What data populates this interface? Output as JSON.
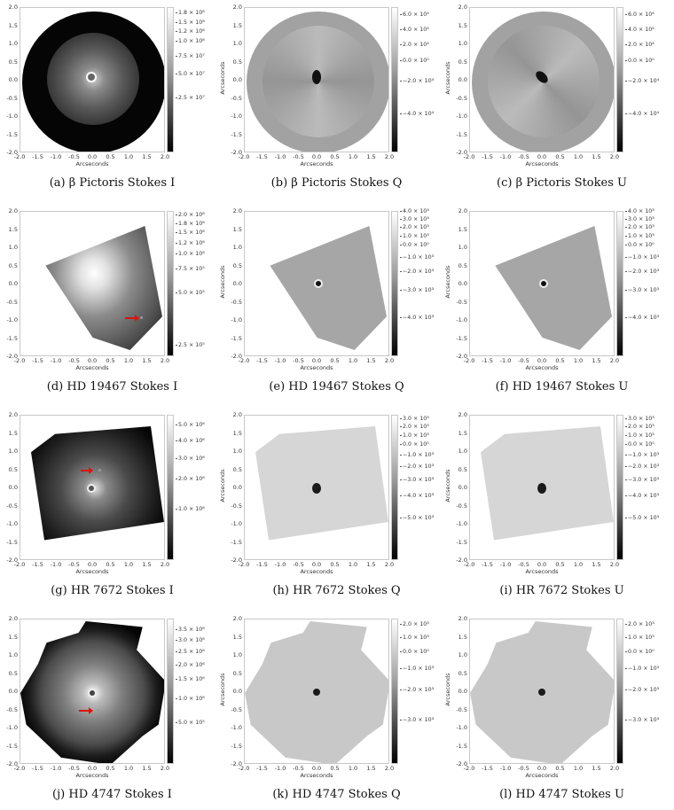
{
  "figure": {
    "axis_label": "Arcseconds",
    "x_ticks": [
      "-2.0",
      "-1.5",
      "-1.0",
      "-0.5",
      "0.0",
      "0.5",
      "1.0",
      "1.5",
      "2.0"
    ],
    "y_ticks": [
      "2.0",
      "1.5",
      "1.0",
      "0.5",
      "0.0",
      "-0.5",
      "-1.0",
      "-1.5",
      "-2.0"
    ],
    "panels": [
      {
        "id": "a",
        "caption": "(a) β Pictoris Stokes I",
        "target": "β Pictoris",
        "stokes": "I",
        "colorbar": [
          "1.8 × 10⁸",
          "1.5 × 10⁸",
          "1.2 × 10⁸",
          "1.0 × 10⁸",
          "7.5 × 10⁷",
          "5.0 × 10⁷",
          "2.5 × 10⁷"
        ],
        "colorbar_pos": [
          6,
          17,
          27,
          38,
          55,
          75,
          102
        ]
      },
      {
        "id": "b",
        "caption": "(b) β Pictoris Stokes Q",
        "target": "β Pictoris",
        "stokes": "Q",
        "colorbar": [
          "6.0 × 10⁴",
          "4.0 × 10⁴",
          "2.0 × 10⁴",
          "0.0 × 10⁰",
          "−2.0 × 10⁴",
          "−4.0 × 10⁴"
        ],
        "colorbar_pos": [
          8,
          25,
          42,
          60,
          83,
          120
        ]
      },
      {
        "id": "c",
        "caption": "(c) β Pictoris Stokes U",
        "target": "β Pictoris",
        "stokes": "U",
        "colorbar": [
          "6.0 × 10⁴",
          "4.0 × 10⁴",
          "2.0 × 10⁴",
          "0.0 × 10⁰",
          "−2.0 × 10⁴",
          "−4.0 × 10⁴"
        ],
        "colorbar_pos": [
          8,
          25,
          42,
          60,
          83,
          120
        ]
      },
      {
        "id": "d",
        "caption": "(d) HD 19467 Stokes I",
        "target": "HD 19467",
        "stokes": "I",
        "colorbar": [
          "2.0 × 10⁶",
          "1.8 × 10⁶",
          "1.5 × 10⁶",
          "1.2 × 10⁶",
          "1.0 × 10⁶",
          "7.5 × 10⁵",
          "5.0 × 10⁵",
          "2.5 × 10⁵"
        ],
        "colorbar_pos": [
          4,
          14,
          24,
          36,
          48,
          65,
          92,
          151
        ]
      },
      {
        "id": "e",
        "caption": "(e) HD 19467 Stokes Q",
        "target": "HD 19467",
        "stokes": "Q",
        "colorbar": [
          "4.0 × 10³",
          "3.0 × 10³",
          "2.0 × 10³",
          "1.0 × 10³",
          "0.0 × 10⁰",
          "−1.0 × 10³",
          "−2.0 × 10³",
          "−3.0 × 10³",
          "−4.0 × 10³"
        ],
        "colorbar_pos": [
          0,
          9,
          18,
          28,
          38,
          52,
          68,
          89,
          120
        ]
      },
      {
        "id": "f",
        "caption": "(f) HD 19467 Stokes U",
        "target": "HD 19467",
        "stokes": "U",
        "colorbar": [
          "4.0 × 10³",
          "3.0 × 10³",
          "2.0 × 10³",
          "1.0 × 10³",
          "0.0 × 10⁰",
          "−1.0 × 10³",
          "−2.0 × 10³",
          "−3.0 × 10³",
          "−4.0 × 10³"
        ],
        "colorbar_pos": [
          0,
          9,
          18,
          28,
          38,
          52,
          68,
          89,
          120
        ]
      },
      {
        "id": "g",
        "caption": "(g) HR 7672 Stokes I",
        "target": "HR 7672",
        "stokes": "I",
        "colorbar": [
          "5.0 × 10⁶",
          "4.0 × 10⁶",
          "3.0 × 10⁶",
          "2.0 × 10⁶",
          "1.0 × 10⁶"
        ],
        "colorbar_pos": [
          11,
          29,
          49,
          72,
          106
        ]
      },
      {
        "id": "h",
        "caption": "(h) HR 7672 Stokes Q",
        "target": "HR 7672",
        "stokes": "Q",
        "colorbar": [
          "3.0 × 10³",
          "2.0 × 10³",
          "1.0 × 10³",
          "0.0 × 10⁰",
          "−1.0 × 10³",
          "−2.0 × 10³",
          "−3.0 × 10³",
          "−4.0 × 10³",
          "−5.0 × 10³"
        ],
        "colorbar_pos": [
          4,
          13,
          23,
          33,
          45,
          58,
          73,
          91,
          116
        ]
      },
      {
        "id": "i",
        "caption": "(i) HR 7672 Stokes U",
        "target": "HR 7672",
        "stokes": "U",
        "colorbar": [
          "3.0 × 10³",
          "2.0 × 10³",
          "1.0 × 10³",
          "0.0 × 10⁰",
          "−1.0 × 10³",
          "−2.0 × 10³",
          "−3.0 × 10³",
          "−4.0 × 10³",
          "−5.0 × 10³"
        ],
        "colorbar_pos": [
          4,
          13,
          23,
          33,
          45,
          58,
          73,
          91,
          116
        ]
      },
      {
        "id": "j",
        "caption": "(j) HD 4747 Stokes I",
        "target": "HD 4747",
        "stokes": "I",
        "colorbar": [
          "3.5 × 10⁶",
          "3.0 × 10⁶",
          "2.5 × 10⁶",
          "2.0 × 10⁶",
          "1.5 × 10⁶",
          "1.0 × 10⁶",
          "5.0 × 10⁵"
        ],
        "colorbar_pos": [
          12,
          24,
          37,
          52,
          68,
          90,
          117
        ]
      },
      {
        "id": "k",
        "caption": "(k) HD 4747 Stokes Q",
        "target": "HD 4747",
        "stokes": "Q",
        "colorbar": [
          "2.0 × 10³",
          "1.0 × 10³",
          "0.0 × 10⁰",
          "−1.0 × 10³",
          "−2.0 × 10³",
          "−3.0 × 10³"
        ],
        "colorbar_pos": [
          6,
          21,
          37,
          56,
          80,
          114
        ]
      },
      {
        "id": "l",
        "caption": "(l) HD 4747 Stokes U",
        "target": "HD 4747",
        "stokes": "U",
        "colorbar": [
          "2.0 × 10³",
          "1.0 × 10³",
          "0.0 × 10⁰",
          "−1.0 × 10³",
          "−2.0 × 10³",
          "−3.0 × 10³"
        ],
        "colorbar_pos": [
          6,
          21,
          37,
          56,
          80,
          114
        ]
      }
    ]
  },
  "colors": {
    "companion_arrow": "#e0120e",
    "background": "#ffffff",
    "colormap": "gray"
  }
}
